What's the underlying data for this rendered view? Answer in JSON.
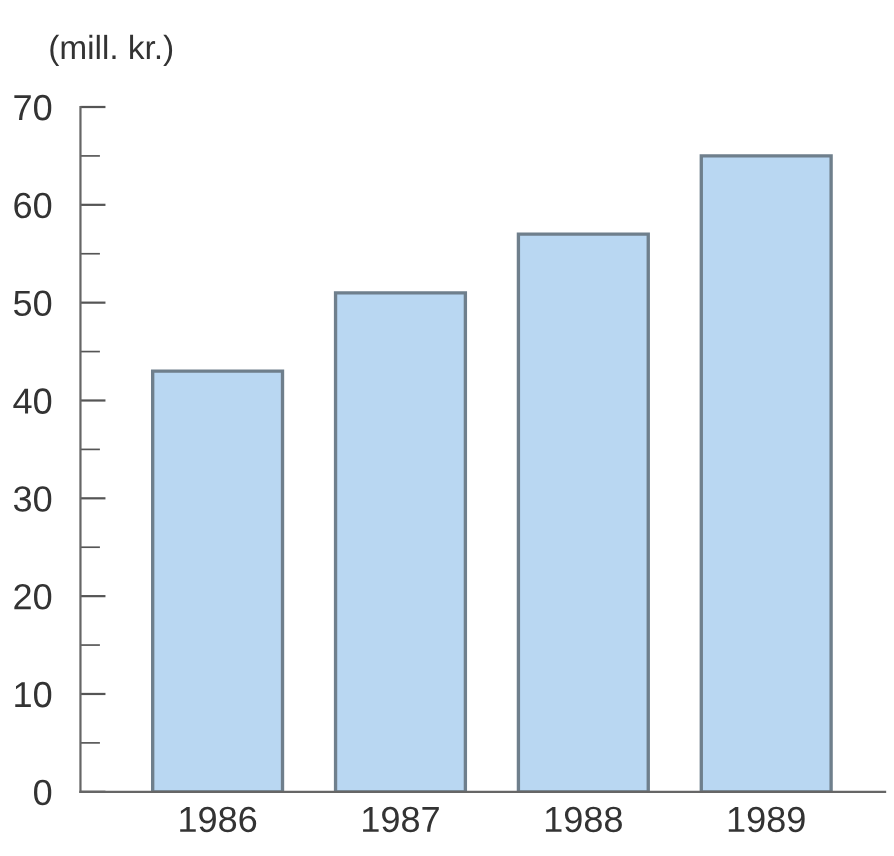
{
  "chart_data": {
    "type": "bar",
    "ylabel": "(mill. kr.)",
    "categories": [
      "1986",
      "1987",
      "1988",
      "1989"
    ],
    "values": [
      43,
      51,
      57,
      65
    ],
    "color": "#b9d7f2",
    "ylim": [
      0,
      70
    ],
    "yticks": [
      0,
      {
        "value": 5,
        "label": null
      },
      10,
      {
        "value": 15,
        "label": null
      },
      20,
      {
        "value": 25,
        "label": null
      },
      30,
      {
        "value": 35,
        "label": null
      },
      40,
      {
        "value": 45,
        "label": null
      },
      50,
      {
        "value": 55,
        "label": null
      },
      60,
      {
        "value": 65,
        "label": null
      },
      70
    ],
    "grid": false
  }
}
